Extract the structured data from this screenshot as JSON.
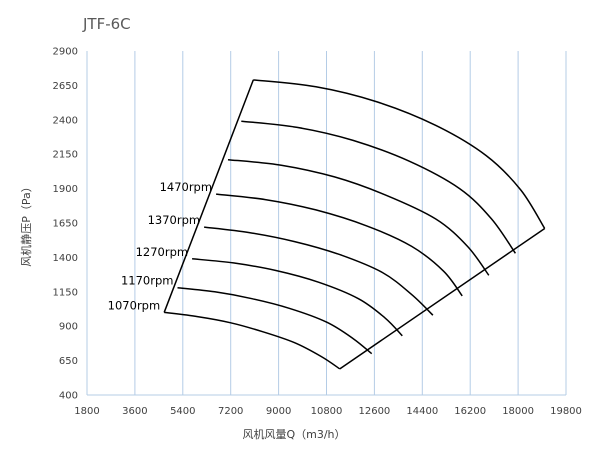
{
  "chart_data": {
    "type": "line",
    "title": "JTF-6C",
    "xlabel": "风机风量Q（m3/h）",
    "ylabel": "风机静压P（Pa）",
    "xlim": [
      1800,
      19800
    ],
    "ylim": [
      400,
      2900
    ],
    "xticks": [
      1800,
      3600,
      5400,
      7200,
      9000,
      10800,
      12600,
      14400,
      16200,
      18000,
      19800
    ],
    "yticks": [
      400,
      650,
      900,
      1150,
      1400,
      1650,
      1900,
      2150,
      2400,
      2650,
      2900
    ],
    "grid": "vertical",
    "line_color": "#000000",
    "grid_color": "#b4cce6",
    "series": [
      {
        "name": "1070rpm",
        "x": [
          4700,
          5950,
          7200,
          8400,
          9600,
          10600,
          11300
        ],
        "y": [
          1000,
          970,
          925,
          860,
          780,
          680,
          590
        ]
      },
      {
        "name": "1170rpm",
        "x": [
          5200,
          6600,
          8000,
          9400,
          10800,
          11800,
          12500
        ],
        "y": [
          1180,
          1150,
          1100,
          1030,
          930,
          810,
          700
        ]
      },
      {
        "name": "1270rpm",
        "x": [
          5750,
          7300,
          8900,
          10500,
          12000,
          13000,
          13650
        ],
        "y": [
          1390,
          1360,
          1305,
          1220,
          1100,
          960,
          830
        ]
      },
      {
        "name": "1370rpm",
        "x": [
          6200,
          7900,
          9600,
          11300,
          12900,
          14000,
          14800
        ],
        "y": [
          1620,
          1580,
          1515,
          1420,
          1290,
          1130,
          980
        ]
      },
      {
        "name": "1470rpm",
        "x": [
          6650,
          8500,
          10400,
          12300,
          14000,
          15200,
          15900
        ],
        "y": [
          1860,
          1820,
          1745,
          1630,
          1480,
          1300,
          1120
        ]
      },
      {
        "name": "",
        "x": [
          7100,
          9100,
          11100,
          13000,
          14900,
          16100,
          16900
        ],
        "y": [
          2110,
          2070,
          1985,
          1855,
          1680,
          1480,
          1270
        ]
      },
      {
        "name": "",
        "x": [
          7600,
          9700,
          11800,
          13900,
          15800,
          17000,
          17900
        ],
        "y": [
          2390,
          2345,
          2250,
          2100,
          1900,
          1680,
          1430
        ]
      },
      {
        "name": "",
        "x": [
          8050,
          10400,
          12700,
          14900,
          16800,
          18100,
          19000
        ],
        "y": [
          2690,
          2640,
          2530,
          2360,
          2140,
          1890,
          1610
        ]
      }
    ],
    "envelope": {
      "left_edge": {
        "x": [
          4700,
          8050
        ],
        "y": [
          1000,
          2690
        ]
      },
      "right_edge": {
        "x": [
          11300,
          19000
        ],
        "y": [
          590,
          1610
        ]
      }
    }
  }
}
